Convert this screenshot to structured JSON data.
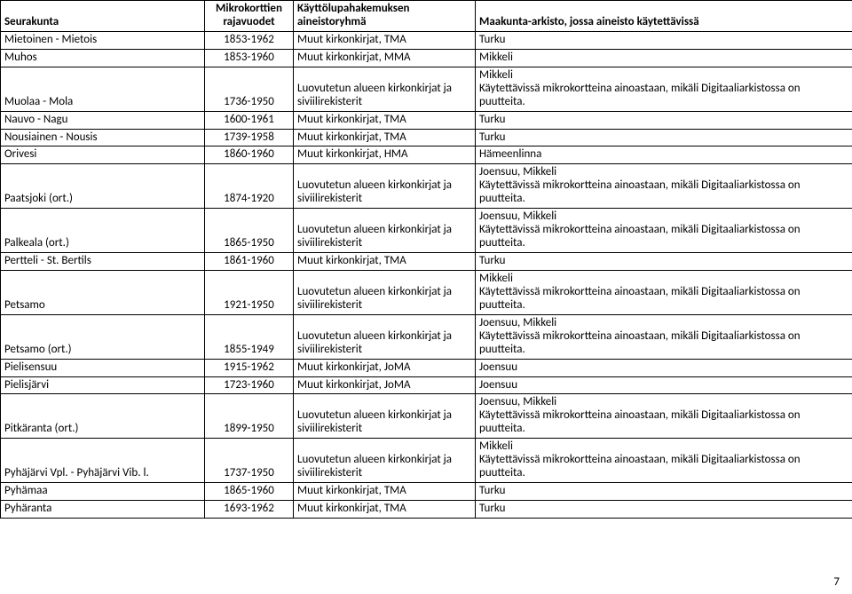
{
  "columns": [
    {
      "label": "Seurakunta",
      "align": "left"
    },
    {
      "label": "Mikrokorttien rajavuodet",
      "align": "center"
    },
    {
      "label": "Käyttölupahakemuksen aineistoryhmä",
      "align": "left"
    },
    {
      "label": "Maakunta-arkisto, jossa aineisto käytettävissä",
      "align": "left"
    }
  ],
  "rows": [
    {
      "c1": "Mietoinen  - Mietois",
      "c2": "1853-1962",
      "c3": "Muut kirkonkirjat, TMA",
      "c4": "Turku"
    },
    {
      "c1": "Muhos",
      "c2": "1853-1960",
      "c3": "Muut kirkonkirjat, MMA",
      "c4": "Mikkeli"
    },
    {
      "c1": "Muolaa - Mola",
      "c2": "1736-1950",
      "c3": "Luovutetun alueen kirkonkirjat ja siviilirekisterit",
      "c4": "Mikkeli\nKäytettävissä mikrokortteina ainoastaan, mikäli Digitaaliarkistossa on puutteita."
    },
    {
      "c1": "Nauvo - Nagu",
      "c2": "1600-1961",
      "c3": "Muut kirkonkirjat, TMA",
      "c4": "Turku"
    },
    {
      "c1": "Nousiainen - Nousis",
      "c2": "1739-1958",
      "c3": "Muut kirkonkirjat, TMA",
      "c4": "Turku"
    },
    {
      "c1": "Orivesi",
      "c2": "1860-1960",
      "c3": "Muut kirkonkirjat, HMA",
      "c4": "Hämeenlinna"
    },
    {
      "c1": "Paatsjoki (ort.)",
      "c2": "1874-1920",
      "c3": "Luovutetun alueen kirkonkirjat ja siviilirekisterit",
      "c4": "Joensuu, Mikkeli\nKäytettävissä mikrokortteina ainoastaan, mikäli Digitaaliarkistossa on puutteita."
    },
    {
      "c1": "Palkeala (ort.)",
      "c2": "1865-1950",
      "c3": "Luovutetun alueen kirkonkirjat ja siviilirekisterit",
      "c4": "Joensuu, Mikkeli\nKäytettävissä mikrokortteina ainoastaan, mikäli Digitaaliarkistossa on puutteita."
    },
    {
      "c1": "Pertteli -  St. Bertils",
      "c2": "1861-1960",
      "c3": "Muut kirkonkirjat, TMA",
      "c4": "Turku"
    },
    {
      "c1": "Petsamo",
      "c2": "1921-1950",
      "c3": "Luovutetun alueen kirkonkirjat ja siviilirekisterit",
      "c4": "Mikkeli\nKäytettävissä mikrokortteina ainoastaan, mikäli Digitaaliarkistossa on puutteita."
    },
    {
      "c1": "Petsamo (ort.)",
      "c2": "1855-1949",
      "c3": "Luovutetun alueen kirkonkirjat ja siviilirekisterit",
      "c4": "Joensuu, Mikkeli\nKäytettävissä mikrokortteina ainoastaan, mikäli Digitaaliarkistossa on puutteita."
    },
    {
      "c1": "Pielisensuu",
      "c2": "1915-1962",
      "c3": "Muut kirkonkirjat, JoMA",
      "c4": "Joensuu"
    },
    {
      "c1": "Pielisjärvi",
      "c2": "1723-1960",
      "c3": "Muut kirkonkirjat, JoMA",
      "c4": "Joensuu"
    },
    {
      "c1": "Pitkäranta (ort.)",
      "c2": "1899-1950",
      "c3": "Luovutetun alueen kirkonkirjat ja siviilirekisterit",
      "c4": "Joensuu, Mikkeli\nKäytettävissä mikrokortteina ainoastaan, mikäli Digitaaliarkistossa on puutteita."
    },
    {
      "c1": "Pyhäjärvi Vpl. - Pyhäjärvi Vib. l.",
      "c2": "1737-1950",
      "c3": "Luovutetun alueen kirkonkirjat ja siviilirekisterit",
      "c4": "Mikkeli\nKäytettävissä mikrokortteina ainoastaan, mikäli Digitaaliarkistossa on puutteita."
    },
    {
      "c1": "Pyhämaa",
      "c2": "1865-1960",
      "c3": "Muut kirkonkirjat, TMA",
      "c4": "Turku"
    },
    {
      "c1": "Pyhäranta",
      "c2": "1693-1962",
      "c3": "Muut kirkonkirjat, TMA",
      "c4": "Turku"
    }
  ],
  "page_number": "7",
  "colors": {
    "border": "#000000",
    "text": "#000000",
    "background": "#ffffff"
  },
  "font": {
    "family": "Calibri, Arial, sans-serif",
    "size_pt": 10
  }
}
